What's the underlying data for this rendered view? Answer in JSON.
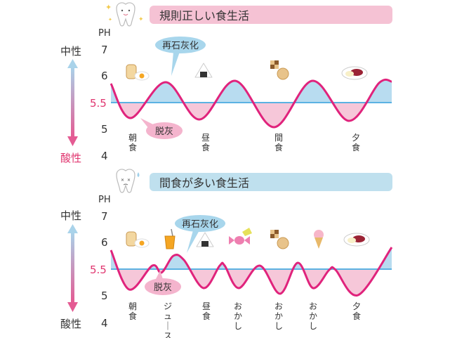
{
  "scale": {
    "unit": "PH",
    "ticks": [
      "7",
      "6",
      "5.5",
      "5",
      "4"
    ],
    "neutral_label": "中性",
    "acid_label": "酸性",
    "threshold": "5.5"
  },
  "colors": {
    "curve": "#e0237c",
    "threshold_line": "#5bb2e2",
    "remineral_fill": "#b8dcf0",
    "demineral_fill": "#f6c7d9",
    "title_bar_top": "#f5c2d4",
    "title_bar_bottom": "#bfe0ee",
    "arrow_top": "#a9d3ea",
    "arrow_bottom": "#e45b93",
    "acid_text": "#e0356f"
  },
  "panels": [
    {
      "title": "規則正しい食生活",
      "remineral_label": "再石灰化",
      "demineral_label": "脱灰",
      "meals": [
        "朝食",
        "昼食",
        "間食",
        "夕食"
      ],
      "icons": [
        "toast-egg-icon",
        "onigiri-icon",
        "cookies-icon",
        "curry-plate-icon"
      ]
    },
    {
      "title": "間食が多い食生活",
      "remineral_label": "再石灰化",
      "demineral_label": "脱灰",
      "meals": [
        "朝食",
        "ジュース",
        "昼食",
        "おかし",
        "おかし",
        "おかし",
        "夕食"
      ],
      "icons": [
        "toast-egg-icon",
        "juice-icon",
        "onigiri-icon",
        "candy-icon",
        "cookies-icon",
        "ice-cream-icon",
        "curry-plate-icon"
      ]
    }
  ]
}
